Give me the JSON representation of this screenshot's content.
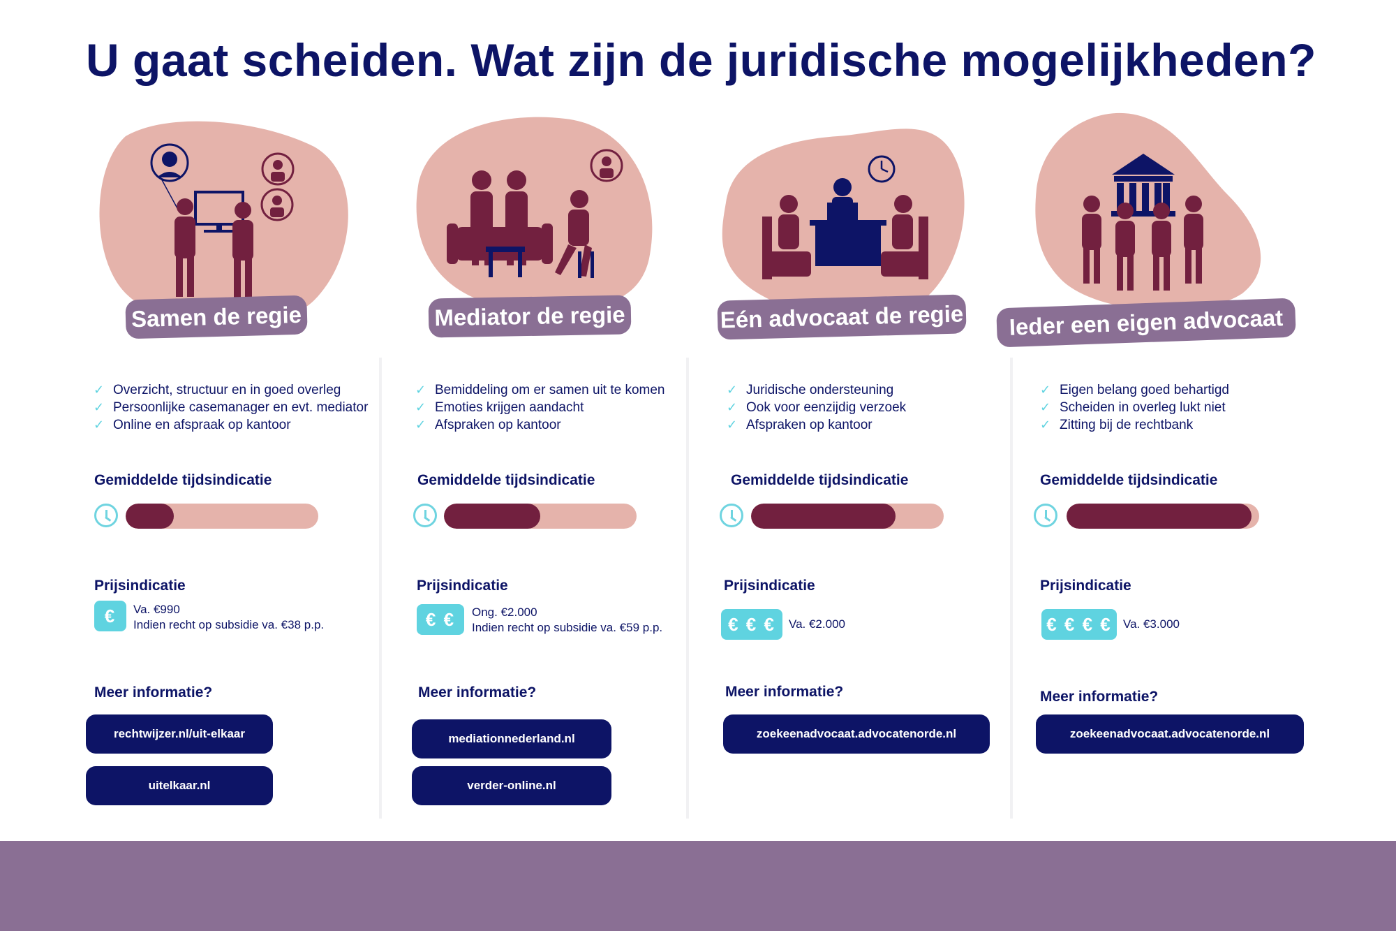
{
  "title": "U gaat scheiden. Wat zijn de juridische mogelijkheden?",
  "headings": {
    "time": "Gemiddelde tijdsindicatie",
    "price": "Prijsindicatie",
    "more": "Meer informatie?"
  },
  "colors": {
    "navy": "#0d1466",
    "blob": "#e5b3ab",
    "figure": "#72203f",
    "tag": "#8a6f94",
    "accent": "#5fd3e0"
  },
  "options": [
    {
      "label": "Samen de regie",
      "icon": "two-people-at-computer-illustration",
      "features": [
        "Overzicht, structuur en in goed overleg",
        "Persoonlijke casemanager en evt. mediator",
        "Online en afspraak op kantoor"
      ],
      "time_fraction": 0.25,
      "euro": "€",
      "price_lines": [
        "Va. €990",
        "Indien recht op subsidie va. €38 p.p."
      ],
      "links": [
        "rechtwijzer.nl/uit-elkaar",
        "uitelkaar.nl"
      ]
    },
    {
      "label": "Mediator de regie",
      "icon": "mediation-session-illustration",
      "features": [
        "Bemiddeling om er samen uit te komen",
        "Emoties krijgen aandacht",
        "Afspraken op kantoor"
      ],
      "time_fraction": 0.5,
      "euro": "€ €",
      "price_lines": [
        "Ong. €2.000",
        "Indien recht op subsidie va. €59 p.p."
      ],
      "links": [
        "mediationnederland.nl",
        "verder-online.nl"
      ]
    },
    {
      "label": "Eén advocaat de regie",
      "icon": "lawyer-desk-illustration",
      "features": [
        "Juridische ondersteuning",
        "Ook voor eenzijdig verzoek",
        "Afspraken op kantoor"
      ],
      "time_fraction": 0.75,
      "euro": "€ € €",
      "price_lines": [
        "Va. €2.000"
      ],
      "links": [
        "zoekeenadvocaat.advocatenorde.nl"
      ]
    },
    {
      "label": "Ieder een eigen advocaat",
      "icon": "courthouse-illustration",
      "features": [
        "Eigen belang goed behartigd",
        "Scheiden in overleg lukt niet",
        "Zitting bij de rechtbank"
      ],
      "time_fraction": 0.96,
      "euro": "€ € € €",
      "price_lines": [
        "Va. €3.000"
      ],
      "links": [
        "zoekeenadvocaat.advocatenorde.nl"
      ]
    }
  ]
}
